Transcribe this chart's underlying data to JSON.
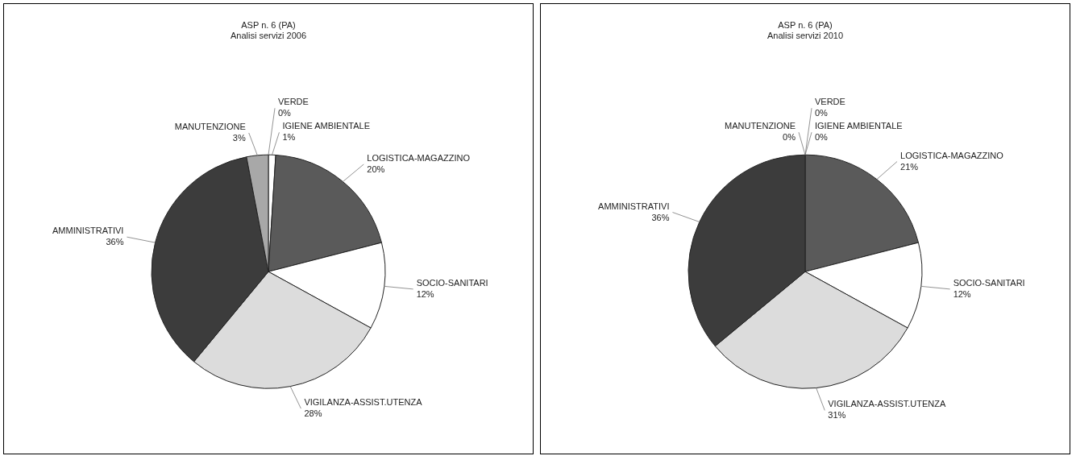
{
  "chart_data": [
    {
      "type": "pie",
      "title": "ASP n. 6 (PA)",
      "subtitle": "Analisi servizi 2006",
      "legend": false,
      "categories": [
        "VERDE",
        "IGIENE AMBIENTALE",
        "LOGISTICA-MAGAZZINO",
        "SOCIO-SANITARI",
        "VIGILANZA-ASSIST.UTENZA",
        "AMMINISTRATIVI",
        "MANUTENZIONE"
      ],
      "values": [
        0,
        1,
        20,
        12,
        28,
        36,
        3
      ],
      "value_labels": [
        "0%",
        "1%",
        "20%",
        "12%",
        "28%",
        "36%",
        "3%"
      ],
      "colors": [
        "#ffffff",
        "#ffffff",
        "#5a5a5a",
        "#ffffff",
        "#dcdcdc",
        "#3c3c3c",
        "#a8a8a8"
      ]
    },
    {
      "type": "pie",
      "title": "ASP n. 6 (PA)",
      "subtitle": "Analisi servizi 2010",
      "legend": false,
      "categories": [
        "VERDE",
        "IGIENE AMBIENTALE",
        "LOGISTICA-MAGAZZINO",
        "SOCIO-SANITARI",
        "VIGILANZA-ASSIST.UTENZA",
        "AMMINISTRATIVI",
        "MANUTENZIONE"
      ],
      "values": [
        0,
        0,
        21,
        12,
        31,
        36,
        0
      ],
      "value_labels": [
        "0%",
        "0%",
        "21%",
        "12%",
        "31%",
        "36%",
        "0%"
      ],
      "colors": [
        "#ffffff",
        "#ffffff",
        "#5a5a5a",
        "#ffffff",
        "#dcdcdc",
        "#3c3c3c",
        "#a8a8a8"
      ]
    }
  ]
}
